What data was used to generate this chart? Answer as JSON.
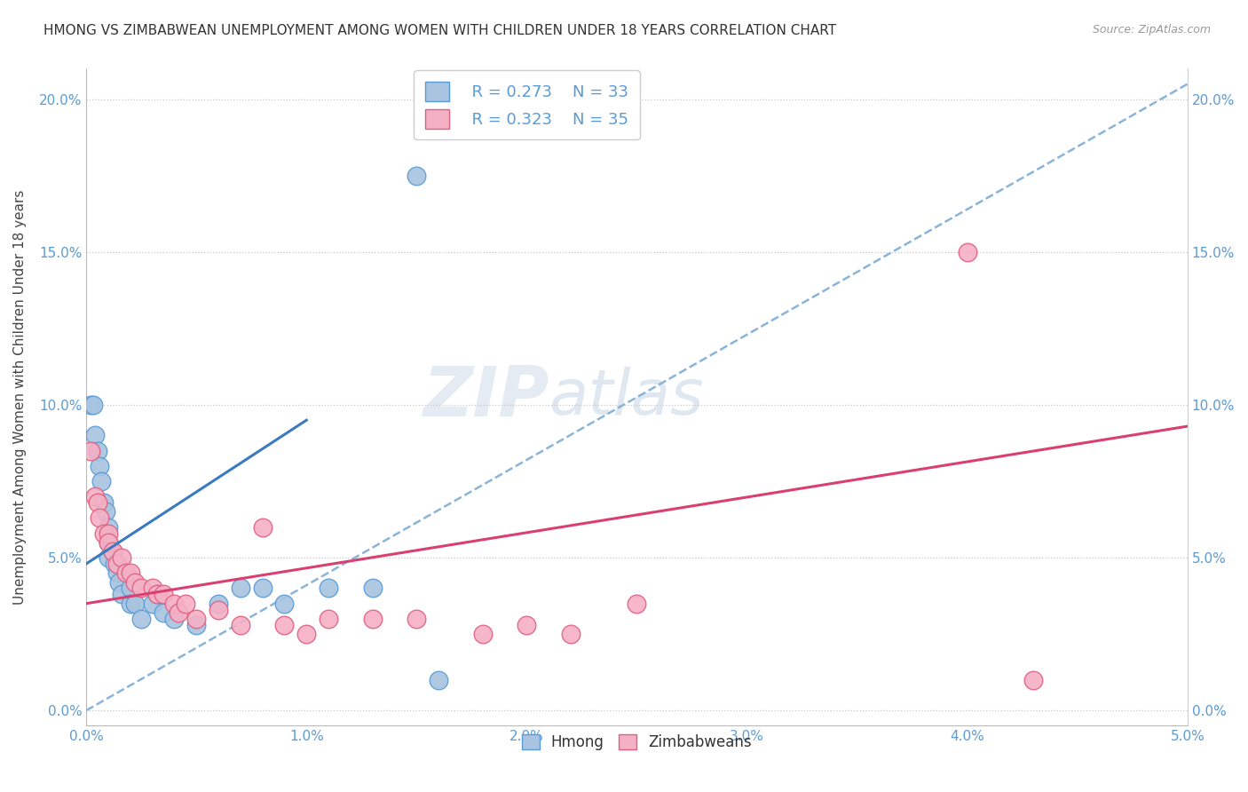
{
  "title": "HMONG VS ZIMBABWEAN UNEMPLOYMENT AMONG WOMEN WITH CHILDREN UNDER 18 YEARS CORRELATION CHART",
  "source": "Source: ZipAtlas.com",
  "xlabel": "",
  "ylabel": "Unemployment Among Women with Children Under 18 years",
  "xlim": [
    0.0,
    0.05
  ],
  "ylim": [
    -0.005,
    0.21
  ],
  "xticks": [
    0.0,
    0.01,
    0.02,
    0.03,
    0.04,
    0.05
  ],
  "xticklabels": [
    "0.0%",
    "1.0%",
    "2.0%",
    "3.0%",
    "4.0%",
    "5.0%"
  ],
  "yticks": [
    0.0,
    0.05,
    0.1,
    0.15,
    0.2
  ],
  "yticklabels": [
    "0.0%",
    "5.0%",
    "10.0%",
    "15.0%",
    "20.0%"
  ],
  "hmong_R": 0.273,
  "hmong_N": 33,
  "zimbabwean_R": 0.323,
  "zimbabwean_N": 35,
  "hmong_color": "#a8c4e0",
  "hmong_edge_color": "#5b9bd5",
  "zimbabwean_color": "#f4b0c4",
  "zimbabwean_edge_color": "#e06080",
  "hmong_line_color": "#3a7abf",
  "zimbabwean_line_color": "#d94070",
  "dashed_line_color": "#8ab4d8",
  "background_color": "#ffffff",
  "watermark_zip": "ZIP",
  "watermark_atlas": "atlas",
  "hmong_x": [
    0.0002,
    0.0003,
    0.0004,
    0.0005,
    0.0006,
    0.0007,
    0.0008,
    0.0009,
    0.001,
    0.001,
    0.001,
    0.0012,
    0.0013,
    0.0014,
    0.0015,
    0.0016,
    0.002,
    0.002,
    0.0022,
    0.0025,
    0.003,
    0.0032,
    0.0035,
    0.004,
    0.005,
    0.006,
    0.007,
    0.008,
    0.009,
    0.011,
    0.013,
    0.015,
    0.016
  ],
  "hmong_y": [
    0.1,
    0.1,
    0.09,
    0.085,
    0.08,
    0.075,
    0.068,
    0.065,
    0.06,
    0.055,
    0.05,
    0.052,
    0.048,
    0.045,
    0.042,
    0.038,
    0.04,
    0.035,
    0.035,
    0.03,
    0.035,
    0.038,
    0.032,
    0.03,
    0.028,
    0.035,
    0.04,
    0.04,
    0.035,
    0.04,
    0.04,
    0.175,
    0.01
  ],
  "zimbabwean_x": [
    0.0002,
    0.0004,
    0.0005,
    0.0006,
    0.0008,
    0.001,
    0.001,
    0.0012,
    0.0014,
    0.0016,
    0.0018,
    0.002,
    0.0022,
    0.0025,
    0.003,
    0.0032,
    0.0035,
    0.004,
    0.0042,
    0.0045,
    0.005,
    0.006,
    0.007,
    0.008,
    0.009,
    0.01,
    0.011,
    0.013,
    0.015,
    0.018,
    0.02,
    0.022,
    0.025,
    0.04,
    0.043
  ],
  "zimbabwean_y": [
    0.085,
    0.07,
    0.068,
    0.063,
    0.058,
    0.058,
    0.055,
    0.052,
    0.048,
    0.05,
    0.045,
    0.045,
    0.042,
    0.04,
    0.04,
    0.038,
    0.038,
    0.035,
    0.032,
    0.035,
    0.03,
    0.033,
    0.028,
    0.06,
    0.028,
    0.025,
    0.03,
    0.03,
    0.03,
    0.025,
    0.028,
    0.025,
    0.035,
    0.15,
    0.01
  ],
  "hmong_trend_x": [
    0.0,
    0.01
  ],
  "hmong_trend_y": [
    0.048,
    0.095
  ],
  "zimbabwean_trend_x": [
    0.0,
    0.05
  ],
  "zimbabwean_trend_y": [
    0.035,
    0.093
  ],
  "dashed_trend_x": [
    0.0,
    0.05
  ],
  "dashed_trend_y": [
    0.0,
    0.205
  ]
}
